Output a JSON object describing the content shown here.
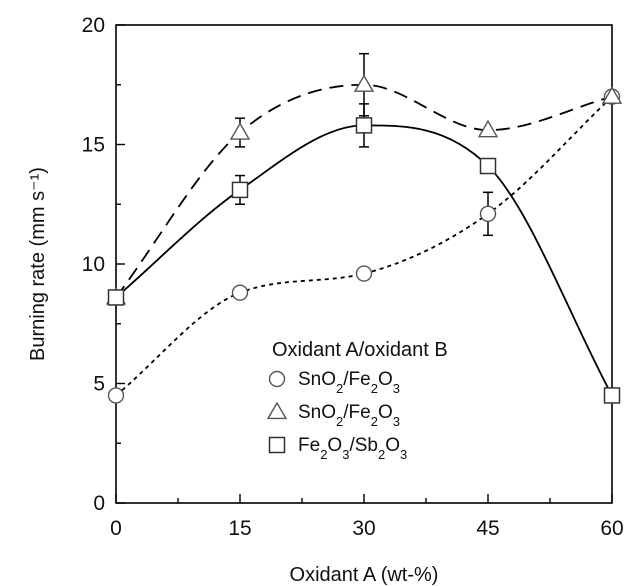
{
  "chart_data": {
    "type": "line",
    "title": "",
    "xlabel": "Oxidant A (wt-%)",
    "ylabel": "Burning rate (mm s⁻¹)",
    "xlim": [
      0,
      60
    ],
    "ylim": [
      0,
      20
    ],
    "xticks": [
      0,
      15,
      30,
      45,
      60
    ],
    "yticks": [
      0,
      5,
      10,
      15,
      20
    ],
    "x": [
      0,
      15,
      30,
      45,
      60
    ],
    "grid": false,
    "legend_title": "Oxidant A/oxidant B",
    "legend_position": "bottom-center",
    "series": [
      {
        "name": "SnO2/Fe2O3",
        "marker": "circle",
        "line_style": "dotted",
        "color": "#000000",
        "values": [
          4.5,
          8.8,
          9.6,
          12.1,
          17.0
        ],
        "errors": [
          null,
          null,
          null,
          0.9,
          null
        ]
      },
      {
        "name": "SnO2/Fe2O3",
        "marker": "triangle",
        "line_style": "dashed",
        "color": "#000000",
        "values": [
          8.6,
          15.5,
          17.5,
          15.6,
          17.0
        ],
        "errors": [
          null,
          0.6,
          1.3,
          null,
          null
        ]
      },
      {
        "name": "Fe2O3/Sb2O3",
        "marker": "square",
        "line_style": "solid",
        "color": "#000000",
        "values": [
          8.6,
          13.1,
          15.8,
          14.1,
          4.5
        ],
        "errors": [
          null,
          0.6,
          0.9,
          null,
          null
        ]
      }
    ]
  }
}
